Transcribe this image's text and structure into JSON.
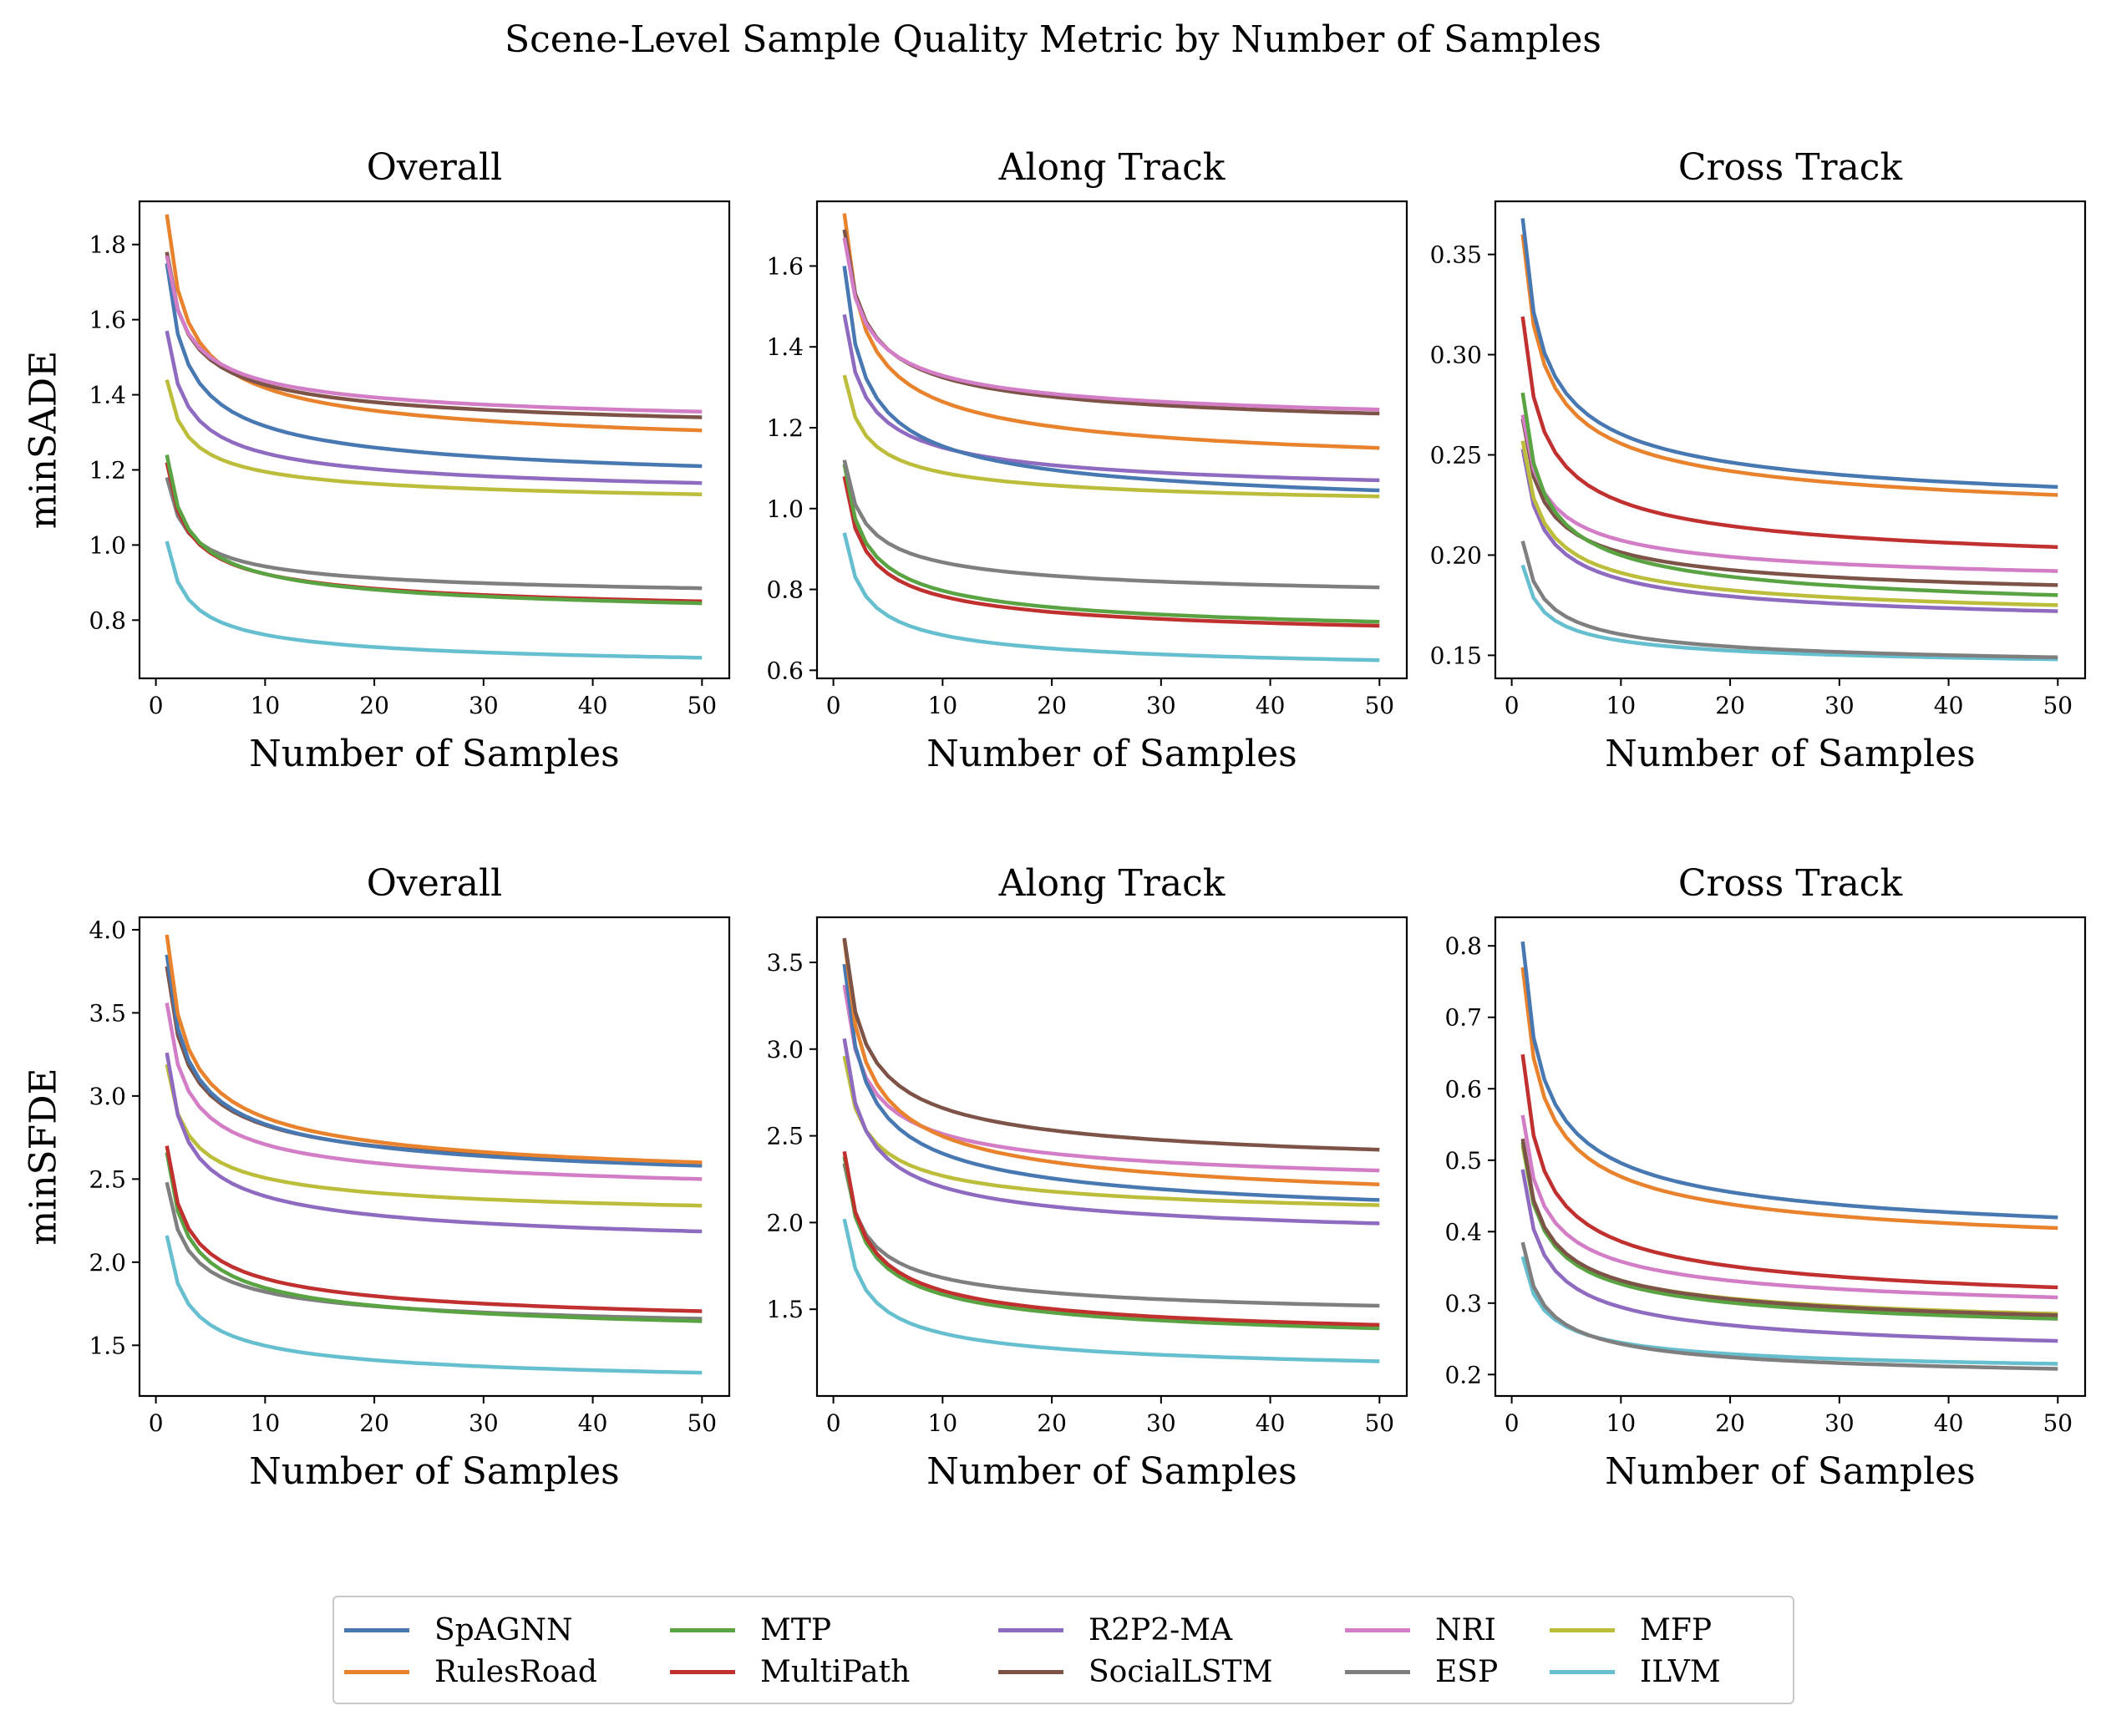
{
  "figure": {
    "suptitle": "Scene-Level Sample Quality Metric by Number of Samples"
  },
  "colors": {
    "SpAGNN": "#4878b2",
    "RulesRoad": "#e8822d",
    "MTP": "#5aa343",
    "MultiPath": "#c0302f",
    "R2P2-MA": "#8e6ac0",
    "SocialLSTM": "#7e5347",
    "NRI": "#d27dc6",
    "ESP": "#7f7f7f",
    "MFP": "#bcbd3b",
    "ILVM": "#66bfcf"
  },
  "legend": {
    "columns": [
      [
        "SpAGNN",
        "RulesRoad"
      ],
      [
        "MTP",
        "MultiPath"
      ],
      [
        "R2P2-MA",
        "SocialLSTM"
      ],
      [
        "NRI",
        "ESP"
      ],
      [
        "MFP",
        "ILVM"
      ]
    ]
  },
  "chart_data": [
    {
      "type": "line",
      "title": "Overall",
      "xlabel": "Number of Samples",
      "ylabel": "minSADE",
      "xlim": [
        -1.5,
        52.5
      ],
      "ylim": [
        0.645,
        1.915
      ],
      "xticks": [
        0,
        10,
        20,
        30,
        40,
        50
      ],
      "yticks": [
        0.8,
        1.0,
        1.2,
        1.4,
        1.6,
        1.8
      ],
      "xtick_labels": [
        "0",
        "10",
        "20",
        "30",
        "40",
        "50"
      ],
      "ytick_labels": [
        "0.8",
        "1.0",
        "1.2",
        "1.4",
        "1.6",
        "1.8"
      ],
      "series": [
        {
          "name": "ILVM",
          "start": 1.01,
          "end": 0.7
        },
        {
          "name": "ESP",
          "start": 1.18,
          "end": 0.885
        },
        {
          "name": "MultiPath",
          "start": 1.22,
          "end": 0.85
        },
        {
          "name": "MTP",
          "start": 1.24,
          "end": 0.845
        },
        {
          "name": "MFP",
          "start": 1.44,
          "end": 1.135
        },
        {
          "name": "R2P2-MA",
          "start": 1.57,
          "end": 1.165
        },
        {
          "name": "SpAGNN",
          "start": 1.75,
          "end": 1.21
        },
        {
          "name": "RulesRoad",
          "start": 1.88,
          "end": 1.305
        },
        {
          "name": "SocialLSTM",
          "start": 1.78,
          "end": 1.34
        },
        {
          "name": "NRI",
          "start": 1.77,
          "end": 1.355
        }
      ]
    },
    {
      "type": "line",
      "title": "Along Track",
      "xlabel": "Number of Samples",
      "ylabel": "",
      "xlim": [
        -1.5,
        52.5
      ],
      "ylim": [
        0.58,
        1.76
      ],
      "xticks": [
        0,
        10,
        20,
        30,
        40,
        50
      ],
      "yticks": [
        0.6,
        0.8,
        1.0,
        1.2,
        1.4,
        1.6
      ],
      "xtick_labels": [
        "0",
        "10",
        "20",
        "30",
        "40",
        "50"
      ],
      "ytick_labels": [
        "0.6",
        "0.8",
        "1.0",
        "1.2",
        "1.4",
        "1.6"
      ],
      "series": [
        {
          "name": "ILVM",
          "start": 0.94,
          "end": 0.625
        },
        {
          "name": "MultiPath",
          "start": 1.08,
          "end": 0.71
        },
        {
          "name": "MTP",
          "start": 1.11,
          "end": 0.72
        },
        {
          "name": "ESP",
          "start": 1.12,
          "end": 0.805
        },
        {
          "name": "MFP",
          "start": 1.33,
          "end": 1.03
        },
        {
          "name": "R2P2-MA",
          "start": 1.48,
          "end": 1.07
        },
        {
          "name": "SpAGNN",
          "start": 1.6,
          "end": 1.045
        },
        {
          "name": "RulesRoad",
          "start": 1.73,
          "end": 1.15
        },
        {
          "name": "SocialLSTM",
          "start": 1.69,
          "end": 1.235
        },
        {
          "name": "NRI",
          "start": 1.67,
          "end": 1.245
        }
      ]
    },
    {
      "type": "line",
      "title": "Cross Track",
      "xlabel": "Number of Samples",
      "ylabel": "",
      "xlim": [
        -1.5,
        52.5
      ],
      "ylim": [
        0.1385,
        0.3765
      ],
      "xticks": [
        0,
        10,
        20,
        30,
        40,
        50
      ],
      "yticks": [
        0.15,
        0.2,
        0.25,
        0.3,
        0.35
      ],
      "xtick_labels": [
        "0",
        "10",
        "20",
        "30",
        "40",
        "50"
      ],
      "ytick_labels": [
        "0.15",
        "0.20",
        "0.25",
        "0.30",
        "0.35"
      ],
      "series": [
        {
          "name": "ILVM",
          "start": 0.195,
          "end": 0.148
        },
        {
          "name": "ESP",
          "start": 0.207,
          "end": 0.149
        },
        {
          "name": "R2P2-MA",
          "start": 0.253,
          "end": 0.172
        },
        {
          "name": "MFP",
          "start": 0.257,
          "end": 0.175
        },
        {
          "name": "SocialLSTM",
          "start": 0.268,
          "end": 0.185
        },
        {
          "name": "NRI",
          "start": 0.27,
          "end": 0.192
        },
        {
          "name": "MTP",
          "start": 0.281,
          "end": 0.18
        },
        {
          "name": "MultiPath",
          "start": 0.319,
          "end": 0.204
        },
        {
          "name": "RulesRoad",
          "start": 0.36,
          "end": 0.23
        },
        {
          "name": "SpAGNN",
          "start": 0.368,
          "end": 0.234
        }
      ]
    },
    {
      "type": "line",
      "title": "Overall",
      "xlabel": "Number of Samples",
      "ylabel": "minSFDE",
      "xlim": [
        -1.5,
        52.5
      ],
      "ylim": [
        1.195,
        4.075
      ],
      "xticks": [
        0,
        10,
        20,
        30,
        40,
        50
      ],
      "yticks": [
        1.5,
        2.0,
        2.5,
        3.0,
        3.5,
        4.0
      ],
      "xtick_labels": [
        "0",
        "10",
        "20",
        "30",
        "40",
        "50"
      ],
      "ytick_labels": [
        "1.5",
        "2.0",
        "2.5",
        "3.0",
        "3.5",
        "4.0"
      ],
      "series": [
        {
          "name": "ILVM",
          "start": 2.16,
          "end": 1.335
        },
        {
          "name": "ESP",
          "start": 2.48,
          "end": 1.66
        },
        {
          "name": "MTP",
          "start": 2.66,
          "end": 1.645
        },
        {
          "name": "MultiPath",
          "start": 2.7,
          "end": 1.705
        },
        {
          "name": "MFP",
          "start": 3.19,
          "end": 2.34
        },
        {
          "name": "R2P2-MA",
          "start": 3.26,
          "end": 2.185
        },
        {
          "name": "NRI",
          "start": 3.56,
          "end": 2.5
        },
        {
          "name": "SocialLSTM",
          "start": 3.78,
          "end": 2.59
        },
        {
          "name": "SpAGNN",
          "start": 3.85,
          "end": 2.58
        },
        {
          "name": "RulesRoad",
          "start": 3.97,
          "end": 2.6
        }
      ]
    },
    {
      "type": "line",
      "title": "Along Track",
      "xlabel": "Number of Samples",
      "ylabel": "",
      "xlim": [
        -1.5,
        52.5
      ],
      "ylim": [
        1.0,
        3.76
      ],
      "xticks": [
        0,
        10,
        20,
        30,
        40,
        50
      ],
      "yticks": [
        1.5,
        2.0,
        2.5,
        3.0,
        3.5
      ],
      "xtick_labels": [
        "0",
        "10",
        "20",
        "30",
        "40",
        "50"
      ],
      "ytick_labels": [
        "1.5",
        "2.0",
        "2.5",
        "3.0",
        "3.5"
      ],
      "series": [
        {
          "name": "ILVM",
          "start": 2.02,
          "end": 1.2
        },
        {
          "name": "ESP",
          "start": 2.34,
          "end": 1.52
        },
        {
          "name": "MTP",
          "start": 2.38,
          "end": 1.39
        },
        {
          "name": "MultiPath",
          "start": 2.41,
          "end": 1.41
        },
        {
          "name": "MFP",
          "start": 2.96,
          "end": 2.1
        },
        {
          "name": "R2P2-MA",
          "start": 3.06,
          "end": 1.995
        },
        {
          "name": "NRI",
          "start": 3.37,
          "end": 2.3
        },
        {
          "name": "SpAGNN",
          "start": 3.49,
          "end": 2.13
        },
        {
          "name": "RulesRoad",
          "start": 3.63,
          "end": 2.22
        },
        {
          "name": "SocialLSTM",
          "start": 3.64,
          "end": 2.42
        }
      ]
    },
    {
      "type": "line",
      "title": "Cross Track",
      "xlabel": "Number of Samples",
      "ylabel": "",
      "xlim": [
        -1.5,
        52.5
      ],
      "ylim": [
        0.17,
        0.84
      ],
      "xticks": [
        0,
        10,
        20,
        30,
        40,
        50
      ],
      "yticks": [
        0.2,
        0.3,
        0.4,
        0.5,
        0.6,
        0.7,
        0.8
      ],
      "xtick_labels": [
        "0",
        "10",
        "20",
        "30",
        "40",
        "50"
      ],
      "ytick_labels": [
        "0.2",
        "0.3",
        "0.4",
        "0.5",
        "0.6",
        "0.7",
        "0.8"
      ],
      "series": [
        {
          "name": "ILVM",
          "start": 0.365,
          "end": 0.215
        },
        {
          "name": "ESP",
          "start": 0.385,
          "end": 0.208
        },
        {
          "name": "R2P2-MA",
          "start": 0.487,
          "end": 0.247
        },
        {
          "name": "MFP",
          "start": 0.52,
          "end": 0.285
        },
        {
          "name": "MTP",
          "start": 0.525,
          "end": 0.278
        },
        {
          "name": "SocialLSTM",
          "start": 0.53,
          "end": 0.283
        },
        {
          "name": "NRI",
          "start": 0.563,
          "end": 0.308
        },
        {
          "name": "MultiPath",
          "start": 0.648,
          "end": 0.322
        },
        {
          "name": "RulesRoad",
          "start": 0.77,
          "end": 0.405
        },
        {
          "name": "SpAGNN",
          "start": 0.806,
          "end": 0.42
        }
      ]
    }
  ]
}
